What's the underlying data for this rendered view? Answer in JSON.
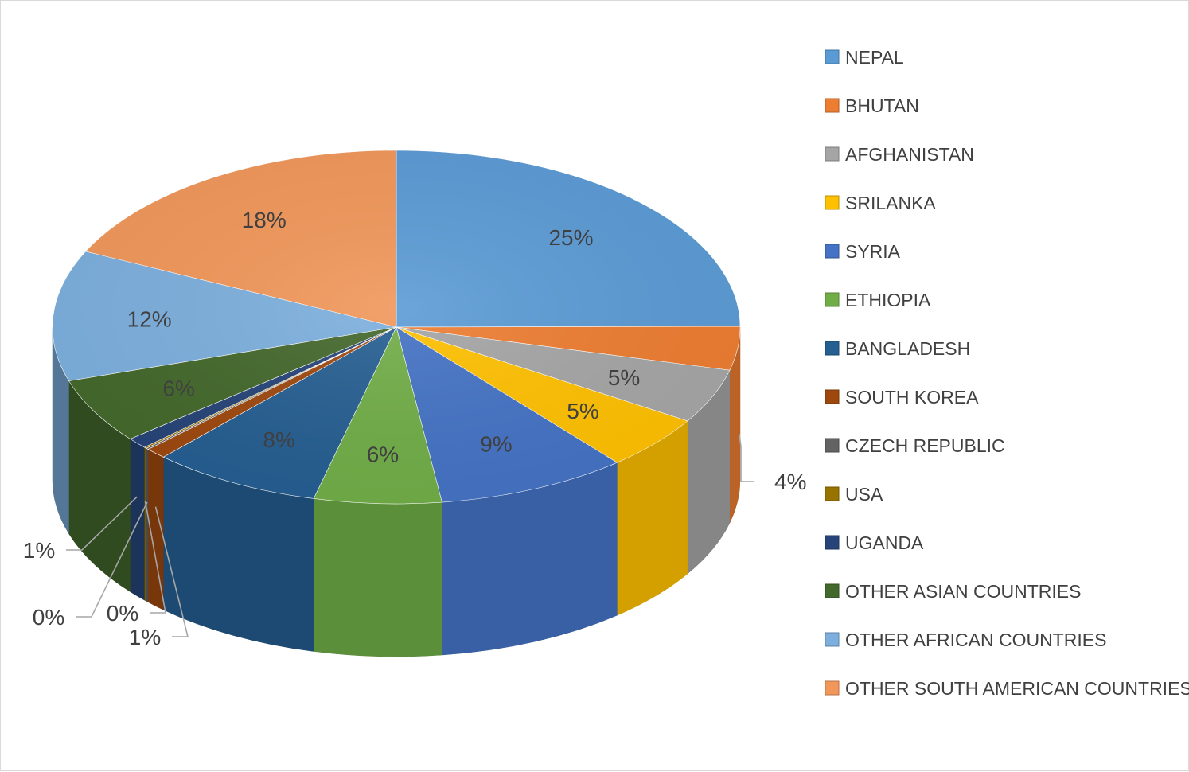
{
  "chart_data": {
    "type": "pie",
    "style": "3d",
    "categories": [
      "NEPAL",
      "BHUTAN",
      "AFGHANISTAN",
      "SRILANKA",
      "SYRIA",
      "ETHIOPIA",
      "BANGLADESH",
      "SOUTH KOREA",
      "CZECH REPUBLIC",
      "USA",
      "UGANDA",
      "OTHER ASIAN COUNTRIES",
      "OTHER AFRICAN COUNTRIES",
      "OTHER SOUTH AMERICAN COUNTRIES"
    ],
    "values": [
      25,
      4,
      5,
      5,
      9,
      6,
      8,
      1,
      0,
      0,
      1,
      6,
      12,
      18
    ],
    "labels": [
      "25%",
      "4%",
      "5%",
      "5%",
      "9%",
      "6%",
      "8%",
      "1%",
      "0%",
      "0%",
      "1%",
      "6%",
      "12%",
      "18%"
    ],
    "colors": [
      "#5B9BD5",
      "#ED7D31",
      "#A5A5A5",
      "#FFC000",
      "#4472C4",
      "#70AD47",
      "#255E91",
      "#9E480E",
      "#636363",
      "#997300",
      "#264478",
      "#43682B",
      "#7CAFDD",
      "#F1975A"
    ],
    "legend_position": "right",
    "title": ""
  }
}
